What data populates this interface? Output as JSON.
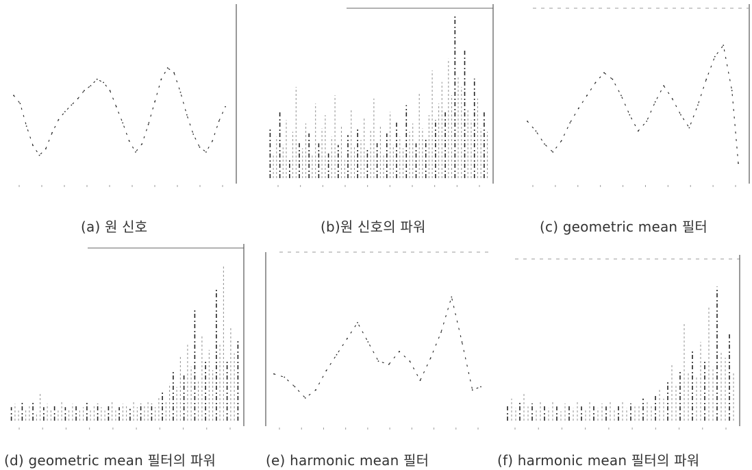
{
  "captions": {
    "a": "(a) 원 신호",
    "b": "(b)원 신호의 파워",
    "c": "(c) geometric mean 필터",
    "d": "(d) geometric mean 필터의 파워",
    "e": "(e) harmonic mean 필터",
    "f": "(f) harmonic mean 필터의 파워"
  },
  "colors": {
    "stroke": "#222222",
    "faint": "#9a9a9a",
    "caption": "#333333"
  },
  "chart_data": [
    {
      "id": "a",
      "type": "line",
      "title": "",
      "xlabel": "",
      "ylabel": "",
      "grid": false,
      "ylim": [
        0,
        1
      ],
      "x": [
        0,
        3,
        6,
        9,
        12,
        15,
        18,
        21,
        24,
        27,
        30,
        33,
        36,
        39,
        42,
        45,
        48,
        51,
        54,
        57,
        60,
        63,
        66,
        69,
        72,
        75,
        78,
        81,
        84,
        87,
        90,
        93,
        96,
        99
      ],
      "values": [
        0.52,
        0.47,
        0.33,
        0.21,
        0.15,
        0.19,
        0.29,
        0.37,
        0.42,
        0.46,
        0.5,
        0.55,
        0.58,
        0.62,
        0.6,
        0.55,
        0.45,
        0.35,
        0.24,
        0.17,
        0.22,
        0.34,
        0.48,
        0.62,
        0.69,
        0.66,
        0.54,
        0.4,
        0.28,
        0.2,
        0.17,
        0.24,
        0.36,
        0.45
      ]
    },
    {
      "id": "b",
      "type": "bar",
      "title": "",
      "xlabel": "",
      "ylabel": "",
      "grid": false,
      "ylim": [
        0,
        1
      ],
      "values": [
        0.3,
        0.15,
        0.25,
        0.4,
        0.2,
        0.35,
        0.12,
        0.28,
        0.55,
        0.22,
        0.18,
        0.33,
        0.27,
        0.14,
        0.45,
        0.21,
        0.3,
        0.38,
        0.16,
        0.25,
        0.5,
        0.2,
        0.32,
        0.11,
        0.26,
        0.42,
        0.19,
        0.3,
        0.23,
        0.36,
        0.17,
        0.29,
        0.48,
        0.22,
        0.31,
        0.15,
        0.27,
        0.4,
        0.2,
        0.34,
        0.25,
        0.18,
        0.44,
        0.28,
        0.33,
        0.21,
        0.52,
        0.3,
        0.24,
        0.38,
        0.65,
        0.35,
        0.45,
        0.58,
        0.4,
        0.72,
        0.5,
        0.98,
        0.62,
        0.55,
        0.78,
        0.42,
        0.35,
        0.6,
        0.48,
        0.3,
        0.4,
        0.28
      ]
    },
    {
      "id": "c",
      "type": "line",
      "title": "",
      "xlabel": "",
      "ylabel": "",
      "grid": false,
      "ylim": [
        0,
        1
      ],
      "x": [
        0,
        4,
        8,
        12,
        16,
        20,
        24,
        28,
        32,
        36,
        40,
        44,
        48,
        52,
        56,
        60,
        64,
        68,
        72,
        76,
        80,
        84,
        88,
        92,
        96,
        99
      ],
      "values": [
        0.36,
        0.3,
        0.22,
        0.17,
        0.24,
        0.35,
        0.44,
        0.52,
        0.6,
        0.66,
        0.62,
        0.52,
        0.4,
        0.3,
        0.36,
        0.48,
        0.58,
        0.5,
        0.4,
        0.32,
        0.46,
        0.62,
        0.76,
        0.83,
        0.55,
        0.1
      ]
    },
    {
      "id": "d",
      "type": "bar",
      "title": "",
      "xlabel": "",
      "ylabel": "",
      "grid": false,
      "ylim": [
        0,
        1
      ],
      "values": [
        0.08,
        0.1,
        0.06,
        0.12,
        0.07,
        0.09,
        0.11,
        0.05,
        0.16,
        0.08,
        0.1,
        0.07,
        0.09,
        0.06,
        0.12,
        0.08,
        0.07,
        0.1,
        0.09,
        0.06,
        0.08,
        0.11,
        0.07,
        0.09,
        0.1,
        0.08,
        0.06,
        0.09,
        0.12,
        0.07,
        0.08,
        0.1,
        0.09,
        0.07,
        0.11,
        0.08,
        0.1,
        0.09,
        0.12,
        0.1,
        0.08,
        0.14,
        0.18,
        0.12,
        0.22,
        0.3,
        0.2,
        0.38,
        0.28,
        0.45,
        0.32,
        0.66,
        0.24,
        0.5,
        0.35,
        0.42,
        0.3,
        0.78,
        0.45,
        0.92,
        0.36,
        0.55,
        0.4,
        0.48
      ]
    },
    {
      "id": "e",
      "type": "line",
      "title": "",
      "xlabel": "",
      "ylabel": "",
      "grid": false,
      "ylim": [
        0,
        1
      ],
      "x": [
        0,
        5,
        10,
        15,
        20,
        25,
        30,
        35,
        40,
        45,
        50,
        55,
        60,
        65,
        70,
        75,
        80,
        85,
        90,
        95,
        99
      ],
      "values": [
        0.3,
        0.28,
        0.22,
        0.15,
        0.2,
        0.32,
        0.42,
        0.52,
        0.62,
        0.5,
        0.38,
        0.36,
        0.44,
        0.38,
        0.26,
        0.4,
        0.56,
        0.78,
        0.5,
        0.2,
        0.22
      ]
    },
    {
      "id": "f",
      "type": "bar",
      "title": "",
      "xlabel": "",
      "ylabel": "",
      "grid": false,
      "ylim": [
        0,
        1
      ],
      "values": [
        0.1,
        0.14,
        0.08,
        0.12,
        0.18,
        0.09,
        0.11,
        0.07,
        0.13,
        0.1,
        0.08,
        0.12,
        0.09,
        0.06,
        0.11,
        0.1,
        0.08,
        0.13,
        0.09,
        0.07,
        0.12,
        0.1,
        0.08,
        0.11,
        0.09,
        0.13,
        0.07,
        0.1,
        0.12,
        0.08,
        0.11,
        0.09,
        0.1,
        0.14,
        0.12,
        0.1,
        0.16,
        0.2,
        0.14,
        0.26,
        0.36,
        0.22,
        0.32,
        0.62,
        0.3,
        0.45,
        0.28,
        0.5,
        0.38,
        0.72,
        0.34,
        0.85,
        0.44,
        0.4,
        0.55,
        0.3
      ]
    }
  ]
}
